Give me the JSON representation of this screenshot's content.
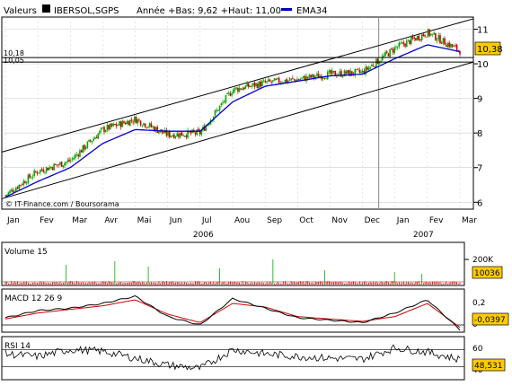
{
  "header": {
    "valeurs_label": "Valeurs",
    "ticker": "IBERSOL,SGPS",
    "range_text": "Année +Bas: 9,62 +Haut: 11,00",
    "ema_label": "EMA34"
  },
  "colors": {
    "price_up": "#00aa00",
    "price_down": "#cc0000",
    "ema": "#0000cc",
    "channel": "#000000",
    "macd": "#000000",
    "signal": "#cc0000",
    "current_box": "#ffcc00",
    "volume": "#cc0000",
    "volume_spike": "#00aa00",
    "grid": "#cccccc"
  },
  "credit": "© IT-Finance.com / Boursorama",
  "chart_data": [
    {
      "type": "candlestick",
      "name": "price",
      "x_labels": [
        "Jan",
        "Fev",
        "Mar",
        "Avr",
        "Mai",
        "Jun",
        "Jul",
        "Aou",
        "Sep",
        "Oct",
        "Nov",
        "Dec",
        "Jan",
        "Fev",
        "Mar"
      ],
      "year_labels": [
        "2006",
        "2007"
      ],
      "y_ticks": [
        "6",
        "7",
        "8",
        "9",
        "10",
        "11"
      ],
      "ylim": [
        5.8,
        11.35
      ],
      "levels": [
        "10,18",
        "10,05"
      ],
      "level_values": [
        10.18,
        10.05
      ],
      "current_value": "10,38",
      "ema_label": "EMA34",
      "monthly_close": [
        6.2,
        6.9,
        7.2,
        8.1,
        8.4,
        7.95,
        8.0,
        9.25,
        9.45,
        9.55,
        9.7,
        9.75,
        10.45,
        10.9,
        10.38
      ],
      "ema_monthly": [
        6.15,
        6.6,
        7.0,
        7.7,
        8.1,
        8.05,
        8.05,
        8.9,
        9.35,
        9.5,
        9.65,
        9.7,
        10.15,
        10.55,
        10.35
      ],
      "channel_upper": {
        "start": 7.45,
        "end": 11.3
      },
      "channel_lower": {
        "start": 6.1,
        "end": 10.05
      }
    },
    {
      "type": "bar",
      "name": "volume",
      "label": "Volume 15",
      "y_ticks": [
        "200K"
      ],
      "current_value": "10036"
    },
    {
      "type": "line",
      "name": "macd",
      "label": "MACD 12 26 9",
      "y_ticks": [
        "0,2",
        "0"
      ],
      "ylim": [
        -0.06,
        0.3
      ],
      "macd_monthly": [
        0.06,
        0.12,
        0.14,
        0.18,
        0.24,
        0.07,
        0.0,
        0.22,
        0.14,
        0.06,
        0.04,
        0.02,
        0.1,
        0.21,
        -0.04
      ],
      "signal_monthly": [
        0.05,
        0.1,
        0.13,
        0.16,
        0.21,
        0.09,
        0.02,
        0.18,
        0.15,
        0.07,
        0.05,
        0.03,
        0.07,
        0.18,
        -0.02
      ],
      "current_value": "-0,0397"
    },
    {
      "type": "line",
      "name": "rsi",
      "label": "RSI 14",
      "y_ticks": [
        "60",
        "40"
      ],
      "ylim": [
        25,
        75
      ],
      "rsi_monthly": [
        55,
        52,
        60,
        58,
        50,
        42,
        38,
        60,
        55,
        52,
        50,
        49,
        62,
        57,
        48.5
      ],
      "current_value": "48,531"
    }
  ]
}
